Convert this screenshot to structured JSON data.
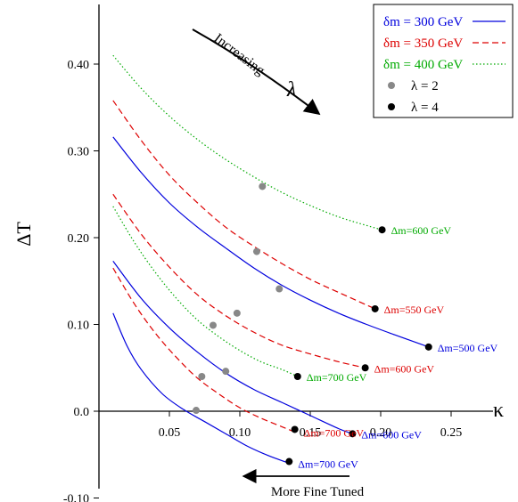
{
  "chart_data": {
    "type": "line",
    "title": "",
    "xlabel": "κ",
    "ylabel": "ΔT",
    "xlim": [
      0.0,
      0.275
    ],
    "ylim": [
      -0.11,
      0.47
    ],
    "x_ticks": [
      0.05,
      0.1,
      0.15,
      0.2,
      0.25
    ],
    "x_tick_labels": [
      "0.05",
      "0.10",
      "0.15",
      "0.20",
      "0.25"
    ],
    "y_ticks": [
      -0.1,
      0.0,
      0.1,
      0.2,
      0.3,
      0.4
    ],
    "y_tick_labels": [
      "-0.10",
      "0.0",
      "0.10",
      "0.20",
      "0.30",
      "0.40"
    ],
    "grid": false,
    "legend_position": "top-right",
    "legend": [
      {
        "label": "δm = 300 GeV",
        "style": "solid",
        "color": "#0000dd"
      },
      {
        "label": "δm = 350 GeV",
        "style": "dashed",
        "color": "#dd0000"
      },
      {
        "label": "δm = 400 GeV",
        "style": "dotted",
        "color": "#00aa00"
      },
      {
        "label": "λ = 2",
        "marker": "circle",
        "color": "#888888"
      },
      {
        "label": "λ = 4",
        "marker": "circle",
        "color": "#000000"
      }
    ],
    "series": [
      {
        "style": "dotted",
        "color": "#00aa00",
        "x": [
          0.01,
          0.03,
          0.05,
          0.07,
          0.09,
          0.11,
          0.13,
          0.15,
          0.17,
          0.19,
          0.201
        ],
        "y": [
          0.41,
          0.372,
          0.34,
          0.313,
          0.29,
          0.27,
          0.252,
          0.237,
          0.224,
          0.214,
          0.209
        ],
        "end_label": "Δm=600 GeV"
      },
      {
        "style": "dashed",
        "color": "#dd0000",
        "x": [
          0.01,
          0.03,
          0.05,
          0.07,
          0.09,
          0.11,
          0.13,
          0.15,
          0.17,
          0.196
        ],
        "y": [
          0.358,
          0.312,
          0.272,
          0.24,
          0.212,
          0.19,
          0.17,
          0.152,
          0.137,
          0.118
        ],
        "end_label": "Δm=550 GeV"
      },
      {
        "style": "solid",
        "color": "#0000dd",
        "x": [
          0.01,
          0.03,
          0.05,
          0.07,
          0.09,
          0.11,
          0.13,
          0.15,
          0.17,
          0.19,
          0.21,
          0.234
        ],
        "y": [
          0.316,
          0.275,
          0.24,
          0.212,
          0.188,
          0.165,
          0.145,
          0.128,
          0.113,
          0.1,
          0.088,
          0.074
        ],
        "end_label": "Δm=500 GeV"
      },
      {
        "style": "dashed",
        "color": "#dd0000",
        "x": [
          0.01,
          0.03,
          0.05,
          0.07,
          0.09,
          0.11,
          0.13,
          0.15,
          0.17,
          0.189
        ],
        "y": [
          0.25,
          0.204,
          0.166,
          0.134,
          0.11,
          0.091,
          0.076,
          0.066,
          0.057,
          0.05
        ],
        "end_label": "Δm=600 GeV"
      },
      {
        "style": "dotted",
        "color": "#00aa00",
        "x": [
          0.01,
          0.025,
          0.04,
          0.055,
          0.07,
          0.085,
          0.1,
          0.115,
          0.13,
          0.141
        ],
        "y": [
          0.236,
          0.195,
          0.16,
          0.13,
          0.105,
          0.086,
          0.07,
          0.057,
          0.048,
          0.04
        ],
        "end_label": "Δm=700 GeV"
      },
      {
        "style": "solid",
        "color": "#0000dd",
        "x": [
          0.01,
          0.03,
          0.05,
          0.07,
          0.09,
          0.11,
          0.13,
          0.15,
          0.17,
          0.18
        ],
        "y": [
          0.173,
          0.13,
          0.096,
          0.068,
          0.044,
          0.025,
          0.01,
          -0.005,
          -0.02,
          -0.026
        ],
        "end_label": "Δm=600 GeV"
      },
      {
        "style": "dashed",
        "color": "#dd0000",
        "x": [
          0.01,
          0.025,
          0.04,
          0.055,
          0.07,
          0.085,
          0.1,
          0.115,
          0.13,
          0.139
        ],
        "y": [
          0.165,
          0.124,
          0.09,
          0.062,
          0.038,
          0.02,
          0.004,
          -0.008,
          -0.018,
          -0.024
        ],
        "end_label": "Δm=700 GeV"
      },
      {
        "style": "solid",
        "color": "#0000dd",
        "x": [
          0.01,
          0.02,
          0.03,
          0.045,
          0.06,
          0.075,
          0.09,
          0.105,
          0.12,
          0.135
        ],
        "y": [
          0.113,
          0.075,
          0.048,
          0.02,
          0.002,
          -0.012,
          -0.026,
          -0.04,
          -0.051,
          -0.06
        ],
        "end_label": "Δm=700 GeV"
      }
    ],
    "points": [
      {
        "label": "λ = 2",
        "color": "#888888",
        "x": [
          0.116,
          0.112,
          0.128,
          0.098,
          0.081,
          0.09,
          0.073,
          0.069
        ],
        "y": [
          0.259,
          0.184,
          0.141,
          0.113,
          0.099,
          0.046,
          0.04,
          0.001
        ]
      },
      {
        "label": "λ = 4",
        "color": "#000000",
        "x": [
          0.201,
          0.196,
          0.234,
          0.189,
          0.141,
          0.18,
          0.139,
          0.135
        ],
        "y": [
          0.209,
          0.118,
          0.074,
          0.05,
          0.04,
          -0.026,
          -0.021,
          -0.058
        ]
      }
    ],
    "annotations": {
      "increasing": "Increasing",
      "increasing_symbol": "λ",
      "fine_tuned": "More Fine Tuned"
    }
  }
}
